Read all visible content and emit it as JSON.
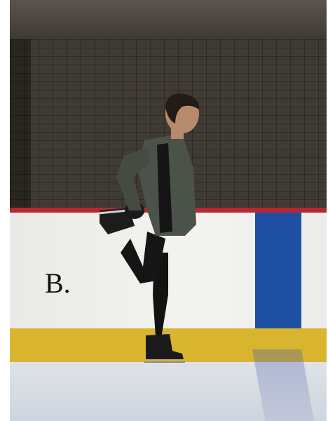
{
  "image": {
    "panel_label": "B.",
    "description_colors": {
      "wall": "#3f3a33",
      "rail": "#b8272f",
      "board": "#efefec",
      "blue_line": "#1f4fa3",
      "kickplate": "#d9b52f",
      "ice": "#d9dde2",
      "jacket": "#4b5249",
      "pants": "#111111"
    }
  }
}
